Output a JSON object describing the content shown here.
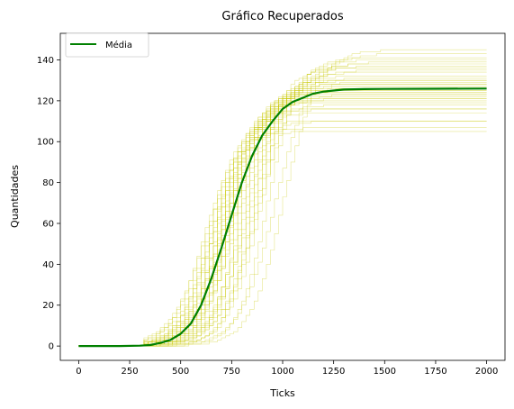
{
  "chart_data": {
    "type": "line",
    "title": "Gráfico Recuperados",
    "xlabel": "Ticks",
    "ylabel": "Quantidades",
    "xlim": [
      -90,
      2090
    ],
    "ylim": [
      -7,
      153
    ],
    "xticks": [
      0,
      250,
      500,
      750,
      1000,
      1250,
      1500,
      1750,
      2000
    ],
    "yticks": [
      0,
      20,
      40,
      60,
      80,
      100,
      120,
      140
    ],
    "grid": false,
    "legend": {
      "position": "top-left",
      "entries": [
        "Média"
      ]
    },
    "mean_series": {
      "name": "Média",
      "color": "#008000",
      "x": [
        0,
        100,
        200,
        300,
        350,
        400,
        450,
        500,
        550,
        600,
        650,
        700,
        750,
        800,
        850,
        900,
        950,
        1000,
        1050,
        1100,
        1150,
        1200,
        1250,
        1300,
        1400,
        1500,
        1750,
        2000
      ],
      "y": [
        0,
        0,
        0,
        0.2,
        0.5,
        1.5,
        3,
        6,
        11,
        20,
        33,
        48,
        64,
        80,
        93,
        103,
        110,
        116,
        119.5,
        121.5,
        123.5,
        124.5,
        125,
        125.5,
        125.7,
        125.8,
        125.9,
        126
      ]
    },
    "runs": {
      "count": 40,
      "color": "#c8c800",
      "plateaus": [
        105,
        107,
        110,
        110,
        114,
        116,
        116,
        118,
        119,
        120,
        121,
        121,
        122,
        123,
        123,
        124,
        124,
        125,
        125,
        126,
        126,
        127,
        127,
        128,
        128,
        129,
        130,
        130,
        131,
        132,
        134,
        135,
        136,
        137,
        138,
        139,
        140,
        141,
        143,
        145
      ],
      "midpoints": [
        605,
        615,
        630,
        640,
        650,
        660,
        665,
        670,
        680,
        690,
        695,
        700,
        705,
        710,
        715,
        720,
        725,
        730,
        735,
        740,
        745,
        750,
        755,
        760,
        770,
        780,
        790,
        800,
        810,
        820,
        830,
        840,
        850,
        860,
        870,
        880,
        890,
        920,
        960,
        1000
      ],
      "widths": [
        78,
        88,
        70,
        92,
        80,
        75,
        85,
        95,
        72,
        82,
        90,
        78,
        86,
        74,
        94,
        80,
        76,
        88,
        70,
        84,
        92,
        78,
        86,
        74,
        82,
        90,
        72,
        80,
        88,
        76,
        84,
        92,
        70,
        86,
        78,
        94,
        80,
        72,
        88,
        82
      ]
    }
  }
}
